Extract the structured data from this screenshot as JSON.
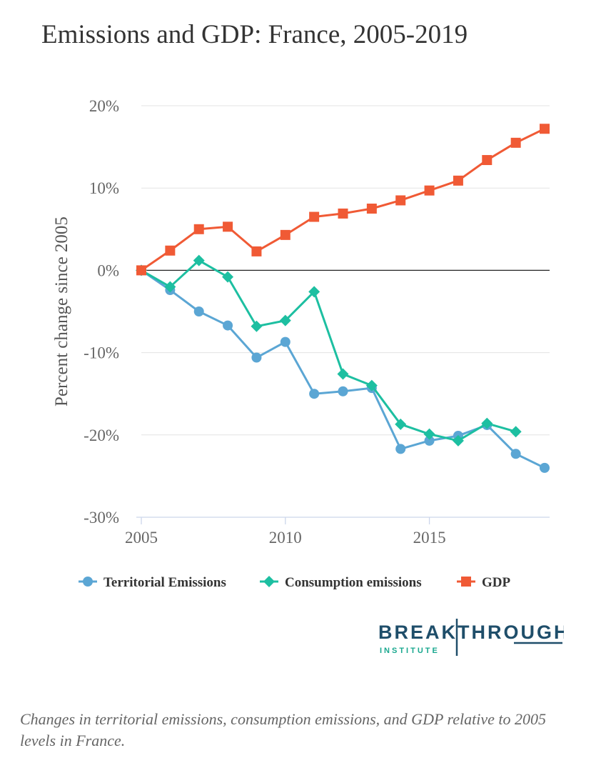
{
  "chart_data": {
    "type": "line",
    "title": "Emissions and GDP: France, 2005-2019",
    "ylabel": "Percent change since 2005",
    "xlabel": "",
    "xlim": [
      2005,
      2019
    ],
    "ylim": [
      -30,
      20
    ],
    "y_ticks": [
      "20%",
      "10%",
      "0%",
      "-10%",
      "-20%",
      "-30%"
    ],
    "y_tick_values": [
      20,
      10,
      0,
      -10,
      -20,
      -30
    ],
    "x_ticks": [
      "2005",
      "2010",
      "2015"
    ],
    "x_tick_values": [
      2005,
      2010,
      2015
    ],
    "grid": "horizontal",
    "legend_position": "bottom",
    "series": [
      {
        "name": "Territorial Emissions",
        "color": "#5ba6d4",
        "marker": "circle",
        "x": [
          2005,
          2006,
          2007,
          2008,
          2009,
          2010,
          2011,
          2012,
          2013,
          2014,
          2015,
          2016,
          2017,
          2018,
          2019
        ],
        "values": [
          0,
          -2.4,
          -5.0,
          -6.7,
          -10.6,
          -8.7,
          -15.0,
          -14.7,
          -14.3,
          -21.7,
          -20.7,
          -20.1,
          -18.8,
          -22.3,
          -24.0
        ]
      },
      {
        "name": "Consumption emissions",
        "color": "#1dbfa1",
        "marker": "diamond",
        "x": [
          2005,
          2006,
          2007,
          2008,
          2009,
          2010,
          2011,
          2012,
          2013,
          2014,
          2015,
          2016,
          2017,
          2018
        ],
        "values": [
          0,
          -2.0,
          1.2,
          -0.8,
          -6.8,
          -6.1,
          -2.6,
          -12.6,
          -14.0,
          -18.7,
          -19.9,
          -20.7,
          -18.6,
          -19.6
        ]
      },
      {
        "name": "GDP",
        "color": "#f05a35",
        "marker": "square",
        "x": [
          2005,
          2006,
          2007,
          2008,
          2009,
          2010,
          2011,
          2012,
          2013,
          2014,
          2015,
          2016,
          2017,
          2018,
          2019
        ],
        "values": [
          0,
          2.4,
          5.0,
          5.3,
          2.3,
          4.3,
          6.5,
          6.9,
          7.5,
          8.5,
          9.7,
          10.9,
          13.4,
          15.5,
          17.2
        ]
      }
    ]
  },
  "logo": {
    "main": "BREAKTHROUGH",
    "sub": "INSTITUTE"
  },
  "caption": "Changes in territorial emissions, consumption emissions, and GDP relative to 2005 levels in France."
}
